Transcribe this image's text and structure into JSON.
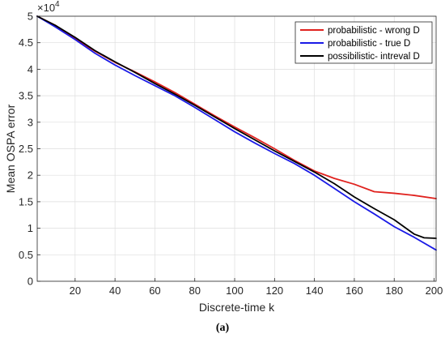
{
  "chart_data": {
    "type": "line",
    "xlabel": "Discrete-time k",
    "ylabel": "Mean OSPA error",
    "y_exponent_label": "×10",
    "y_exponent": "4",
    "caption": "(a)",
    "xlim": [
      1,
      201
    ],
    "ylim": [
      0,
      50000
    ],
    "xticks": [
      20,
      40,
      60,
      80,
      100,
      120,
      140,
      160,
      180,
      200
    ],
    "yticks": [
      0,
      5000,
      10000,
      15000,
      20000,
      25000,
      30000,
      35000,
      40000,
      45000,
      50000
    ],
    "ytick_labels": [
      "0",
      "0.5",
      "1",
      "1.5",
      "2",
      "2.5",
      "3",
      "3.5",
      "4",
      "4.5",
      "5"
    ],
    "grid": true,
    "legend_position": "top-right",
    "series": [
      {
        "name": "probabilistic - wrong D",
        "color": "#e0221e",
        "x": [
          1,
          10,
          20,
          30,
          40,
          50,
          60,
          70,
          80,
          90,
          100,
          110,
          120,
          130,
          140,
          150,
          160,
          170,
          180,
          190,
          201
        ],
        "y": [
          50000,
          48300,
          45700,
          43400,
          41300,
          39500,
          37600,
          35600,
          33400,
          31200,
          29100,
          27100,
          25000,
          22800,
          20800,
          19400,
          18300,
          16900,
          16600,
          16200,
          15600
        ]
      },
      {
        "name": "probabilistic - true D",
        "color": "#1a1ae6",
        "x": [
          1,
          10,
          20,
          30,
          40,
          50,
          60,
          70,
          80,
          90,
          100,
          110,
          120,
          130,
          140,
          150,
          160,
          170,
          180,
          190,
          201
        ],
        "y": [
          50000,
          48000,
          45600,
          43000,
          40800,
          38800,
          36900,
          35000,
          32800,
          30500,
          28200,
          26100,
          24100,
          22200,
          20000,
          17500,
          15000,
          12700,
          10300,
          8300,
          5900
        ]
      },
      {
        "name": "possibilistic- intreval D",
        "color": "#000000",
        "x": [
          1,
          10,
          20,
          30,
          40,
          50,
          60,
          70,
          80,
          90,
          100,
          110,
          120,
          130,
          140,
          150,
          160,
          170,
          180,
          190,
          195,
          201
        ],
        "y": [
          50000,
          48300,
          46000,
          43500,
          41400,
          39400,
          37300,
          35300,
          33200,
          31000,
          28800,
          26700,
          24600,
          22600,
          20600,
          18400,
          15900,
          13700,
          11600,
          8900,
          8200,
          8100
        ]
      }
    ]
  }
}
